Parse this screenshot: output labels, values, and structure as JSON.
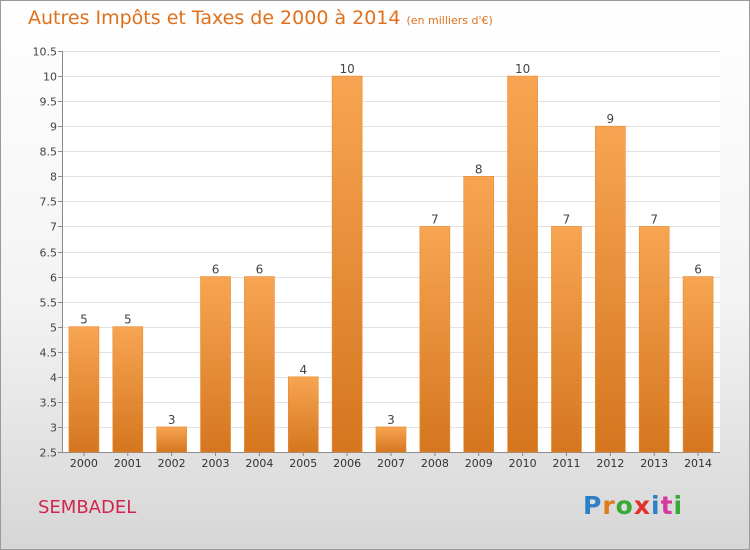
{
  "header": {
    "title": "Autres Impôts et Taxes de 2000 à 2014",
    "unit": "(en milliers d'€)"
  },
  "commune": "SEMBADEL",
  "logo": {
    "text": "Proxiti",
    "letter_colors": [
      "#2f7fc8",
      "#e07a1c",
      "#39a935",
      "#e0322b",
      "#2f7fc8",
      "#d63aa0",
      "#39a935"
    ]
  },
  "colors": {
    "bar_light": "#f7a552",
    "bar_dark": "#d5761f",
    "bar_stroke": "#e98a2e",
    "title": "#e0711c",
    "commune": "#d0264d"
  },
  "chart_data": {
    "type": "bar",
    "categories": [
      "2000",
      "2001",
      "2002",
      "2003",
      "2004",
      "2005",
      "2006",
      "2007",
      "2008",
      "2009",
      "2010",
      "2011",
      "2012",
      "2013",
      "2014"
    ],
    "values": [
      5,
      5,
      3,
      6,
      6,
      4,
      10,
      3,
      7,
      8,
      10,
      7,
      9,
      7,
      6
    ],
    "data_labels": [
      "5",
      "5",
      "3",
      "6",
      "6",
      "4",
      "10",
      "3",
      "7",
      "8",
      "10",
      "7",
      "9",
      "7",
      "6"
    ],
    "yticks": [
      "2.5",
      "3",
      "3.5",
      "4",
      "4.5",
      "5",
      "5.5",
      "6",
      "6.5",
      "7",
      "7.5",
      "8",
      "8.5",
      "9",
      "9.5",
      "10",
      "10.5"
    ],
    "ylim": [
      2.5,
      10.5
    ],
    "grid": true,
    "title": "Autres Impôts et Taxes de 2000 à 2014",
    "xlabel": "",
    "ylabel": ""
  }
}
